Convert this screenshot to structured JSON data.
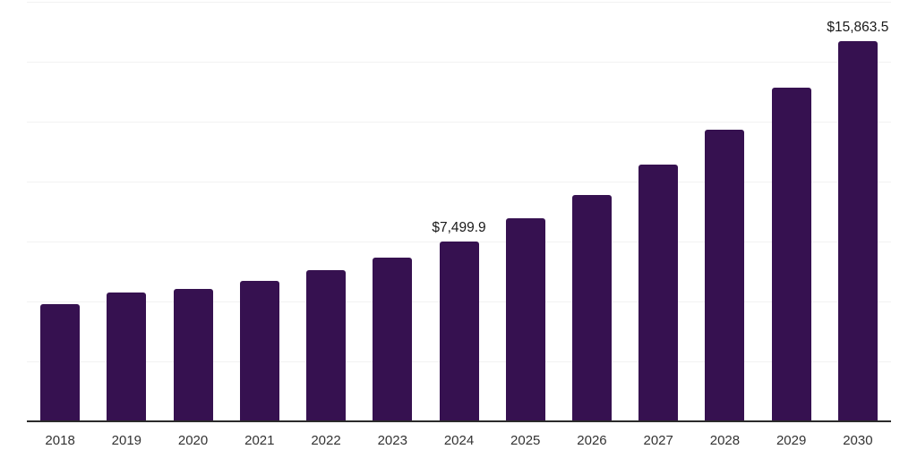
{
  "chart": {
    "background_color": "#ffffff",
    "bar_color": "#361150",
    "gridline_color": "#f2f2f2",
    "axis_line_color": "#2b2b2b",
    "value_label_color": "#1a1a1a",
    "tick_label_color": "#333333"
  },
  "chart_data": {
    "type": "bar",
    "title": "",
    "xlabel": "",
    "ylabel": "",
    "categories": [
      "2018",
      "2019",
      "2020",
      "2021",
      "2022",
      "2023",
      "2024",
      "2025",
      "2026",
      "2027",
      "2028",
      "2029",
      "2030"
    ],
    "values": [
      4870,
      5370,
      5530,
      5860,
      6300,
      6830,
      7499.9,
      8470,
      9440,
      10710,
      12160,
      13920,
      15863.5
    ],
    "point_labels": [
      null,
      null,
      null,
      null,
      null,
      null,
      "$7,499.9",
      null,
      null,
      null,
      null,
      null,
      "$15,863.5"
    ],
    "ylim": [
      0,
      17500
    ],
    "gridline_step": 2500,
    "grid": true,
    "legend": false,
    "y_axis_labels_shown": false
  }
}
